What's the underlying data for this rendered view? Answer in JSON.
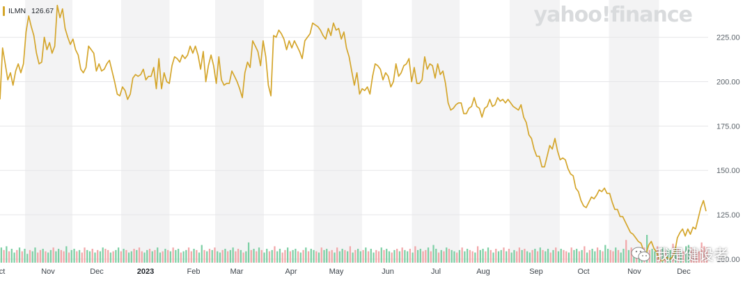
{
  "legend": {
    "ticker": "ILMN",
    "last": "126.67"
  },
  "brand": "yahoo!finance",
  "watermark": "我是健设者",
  "colors": {
    "line": "#d4a52a",
    "swatch": "#d4a52a",
    "vol_up": "#7ccfa4",
    "vol_down": "#f2a6a8",
    "band": "#f3f3f4",
    "grid": "#e6e6e8"
  },
  "chart_data": {
    "type": "line",
    "ticker": "ILMN",
    "y_ticks": [
      225,
      200,
      175,
      150,
      125,
      100
    ],
    "y_tick_labels": [
      "225.00",
      "200.00",
      "175.00",
      "150.00",
      "125.00",
      "100.00"
    ],
    "ylim": [
      98,
      246
    ],
    "grid": true,
    "legend_position": "top-left",
    "x_labels": [
      {
        "label": "ct",
        "year": false
      },
      {
        "label": "Nov",
        "year": false
      },
      {
        "label": "Dec",
        "year": false
      },
      {
        "label": "2023",
        "year": true
      },
      {
        "label": "Feb",
        "year": false
      },
      {
        "label": "Mar",
        "year": false
      },
      {
        "label": "Apr",
        "year": false
      },
      {
        "label": "May",
        "year": false
      },
      {
        "label": "Jun",
        "year": false
      },
      {
        "label": "Jul",
        "year": false
      },
      {
        "label": "Aug",
        "year": false
      },
      {
        "label": "Sep",
        "year": false
      },
      {
        "label": "Oct",
        "year": false
      },
      {
        "label": "Nov",
        "year": false
      },
      {
        "label": "Dec",
        "year": false
      }
    ],
    "series": [
      {
        "values": [
          190,
          219,
          210,
          201,
          205,
          198,
          206,
          210,
          205,
          210,
          228,
          237,
          231,
          226,
          216,
          210,
          211,
          225,
          218,
          222,
          216,
          220,
          243,
          236,
          241,
          230,
          225,
          221,
          224,
          218,
          215,
          207,
          205,
          208,
          220,
          218,
          216,
          206,
          210,
          206,
          207,
          210,
          212,
          206,
          200,
          193,
          192,
          197,
          195,
          190,
          193,
          202,
          204,
          203,
          204,
          207,
          201,
          203,
          203,
          208,
          196,
          213,
          196,
          205,
          200,
          199,
          209,
          214,
          213,
          211,
          215,
          213,
          215,
          220,
          216,
          220,
          215,
          207,
          217,
          200,
          209,
          215,
          209,
          199,
          214,
          201,
          198,
          199,
          199,
          206,
          203,
          200,
          196,
          191,
          205,
          211,
          208,
          223,
          220,
          217,
          209,
          223,
          214,
          198,
          192,
          226,
          225,
          229,
          227,
          224,
          218,
          223,
          219,
          223,
          220,
          217,
          213,
          223,
          225,
          227,
          233,
          232,
          231,
          229,
          226,
          224,
          230,
          226,
          233,
          229,
          230,
          224,
          228,
          219,
          214,
          206,
          198,
          205,
          193,
          196,
          195,
          197,
          193,
          203,
          210,
          209,
          207,
          201,
          205,
          203,
          197,
          200,
          210,
          203,
          205,
          209,
          210,
          213,
          200,
          208,
          199,
          199,
          201,
          214,
          207,
          210,
          209,
          202,
          210,
          204,
          206,
          199,
          188,
          184,
          185,
          187,
          188,
          188,
          182,
          182,
          185,
          186,
          191,
          186,
          185,
          180,
          185,
          186,
          190,
          186,
          187,
          191,
          189,
          190,
          188,
          190,
          188,
          186,
          185,
          184,
          187,
          180,
          177,
          170,
          168,
          162,
          158,
          158,
          152,
          152,
          158,
          164,
          162,
          168,
          161,
          156,
          157,
          156,
          151,
          148,
          147,
          140,
          138,
          133,
          130,
          129,
          132,
          135,
          134,
          136,
          139,
          138,
          140,
          137,
          137,
          132,
          128,
          128,
          124,
          124,
          121,
          118,
          115,
          114,
          112,
          110,
          109,
          105,
          103,
          108,
          110,
          106,
          104,
          100,
          99,
          100,
          101,
          100,
          101,
          104,
          112,
          115,
          117,
          113,
          117,
          114,
          118,
          117,
          123,
          129,
          133,
          127
        ]
      }
    ],
    "volume": {
      "unit": "relative",
      "values": [
        12,
        10,
        13,
        9,
        11,
        8,
        10,
        12,
        9,
        11,
        7,
        10,
        9,
        12,
        8,
        10,
        11,
        9,
        8,
        10,
        12,
        9,
        11,
        10,
        9,
        13,
        8,
        10,
        11,
        9,
        10,
        8,
        12,
        10,
        9,
        11,
        8,
        10,
        9,
        12,
        11,
        10,
        8,
        9,
        10,
        12,
        9,
        11,
        10,
        8,
        9,
        11,
        10,
        12,
        9,
        8,
        10,
        11,
        9,
        10,
        12,
        8,
        9,
        11,
        10,
        9,
        12,
        10,
        11,
        8,
        9,
        10,
        12,
        9,
        11,
        10,
        8,
        14,
        10,
        9,
        11,
        10,
        12,
        9,
        8,
        10,
        11,
        9,
        10,
        12,
        9,
        11,
        10,
        8,
        9,
        16,
        10,
        11,
        9,
        12,
        10,
        8,
        11,
        9,
        10,
        13,
        9,
        11,
        8,
        10,
        12,
        9,
        10,
        11,
        9,
        8,
        10,
        12,
        9,
        11,
        10,
        9,
        8,
        12,
        10,
        11,
        9,
        10,
        8,
        12,
        9,
        11,
        10,
        9,
        13,
        8,
        10,
        11,
        9,
        10,
        12,
        9,
        11,
        8,
        10,
        9,
        12,
        10,
        11,
        9,
        8,
        10,
        11,
        9,
        12,
        10,
        9,
        11,
        8,
        13,
        10,
        11,
        9,
        10,
        12,
        9,
        14,
        11,
        8,
        10,
        9,
        12,
        11,
        10,
        9,
        8,
        10,
        12,
        9,
        11,
        10,
        9,
        8,
        13,
        10,
        11,
        9,
        12,
        10,
        8,
        11,
        9,
        10,
        12,
        9,
        11,
        8,
        10,
        9,
        12,
        10,
        11,
        9,
        8,
        10,
        11,
        9,
        12,
        10,
        9,
        11,
        8,
        10,
        12,
        9,
        11,
        10,
        9,
        8,
        12,
        10,
        11,
        9,
        10,
        13,
        8,
        10,
        11,
        9,
        12,
        10,
        9,
        14,
        11,
        10,
        9,
        12,
        10,
        8,
        11,
        18,
        10,
        12,
        9,
        11,
        10,
        9,
        12,
        22,
        10,
        11,
        9,
        13,
        10,
        12,
        9,
        11,
        10,
        15,
        12,
        11,
        10,
        9,
        13,
        14,
        12,
        11,
        10,
        9,
        16,
        13,
        12
      ],
      "up": [
        1,
        0,
        1,
        0,
        1,
        1,
        0,
        1,
        0,
        1,
        1,
        0,
        1,
        1,
        0,
        0,
        1,
        0,
        1,
        1,
        0,
        1,
        1,
        0,
        0,
        1,
        0,
        1,
        1,
        0,
        1,
        0,
        0,
        1,
        1,
        0,
        1,
        0,
        1,
        1,
        0,
        0,
        1,
        0,
        1,
        1,
        0,
        1,
        0,
        1,
        1,
        0,
        1,
        0,
        0,
        1,
        1,
        0,
        1,
        0,
        1,
        1,
        0,
        1,
        0,
        1,
        0,
        1,
        1,
        0,
        1,
        1,
        0,
        0,
        1,
        0,
        1,
        1,
        0,
        1,
        0,
        1,
        0,
        1,
        1,
        0,
        1,
        0,
        1,
        1,
        0,
        0,
        1,
        0,
        1,
        1,
        0,
        1,
        0,
        1,
        0,
        1,
        1,
        0,
        1,
        0,
        1,
        1,
        0,
        0,
        1,
        0,
        1,
        1,
        0,
        1,
        0,
        1,
        0,
        1,
        1,
        0,
        1,
        0,
        1,
        1,
        0,
        0,
        1,
        0,
        1,
        1,
        0,
        1,
        0,
        1,
        0,
        1,
        1,
        0,
        1,
        0,
        1,
        1,
        0,
        0,
        1,
        0,
        1,
        1,
        0,
        1,
        0,
        1,
        0,
        1,
        1,
        0,
        1,
        0,
        1,
        1,
        0,
        0,
        1,
        0,
        1,
        1,
        0,
        1,
        0,
        1,
        0,
        1,
        1,
        0,
        1,
        0,
        1,
        1,
        0,
        0,
        1,
        0,
        1,
        1,
        0,
        1,
        0,
        1,
        0,
        1,
        1,
        0,
        1,
        0,
        1,
        1,
        0,
        0,
        1,
        0,
        1,
        1,
        0,
        1,
        0,
        1,
        0,
        1,
        1,
        0,
        1,
        0,
        1,
        1,
        0,
        0,
        1,
        0,
        1,
        1,
        0,
        1,
        0,
        1,
        0,
        1,
        1,
        0,
        1,
        0,
        1,
        1,
        0,
        0,
        1,
        0,
        1,
        1,
        0,
        1,
        0,
        1,
        0,
        1,
        1,
        0,
        1,
        0,
        1,
        1,
        0,
        0,
        1,
        0,
        1,
        1,
        0,
        1,
        0,
        1,
        0,
        1,
        1
      ]
    }
  }
}
